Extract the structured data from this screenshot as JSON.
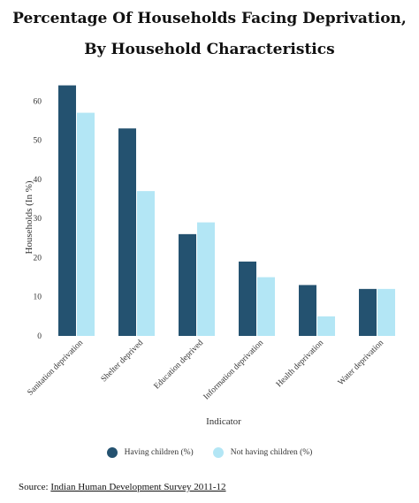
{
  "chart_data": {
    "type": "bar",
    "title": [
      "Percentage Of Households Facing Deprivation,",
      "By Household Characteristics"
    ],
    "xlabel": "Indicator",
    "ylabel": "Households (In %)",
    "ylim": [
      0,
      70
    ],
    "yticks": [
      0,
      10,
      20,
      30,
      40,
      50,
      60
    ],
    "categories": [
      "Sanitation deprivation",
      "Shelter deprived",
      "Education deprived",
      "Information deprivation",
      "Health deprivation",
      "Water deprivation"
    ],
    "series": [
      {
        "name": "Having children (%)",
        "color": "#245270",
        "values": [
          64,
          53,
          26,
          19,
          13,
          12
        ]
      },
      {
        "name": "Not having children (%)",
        "color": "#b3e6f5",
        "values": [
          57,
          37,
          29,
          15,
          5,
          12
        ]
      }
    ],
    "grid": false,
    "legend_position": "bottom"
  },
  "source": {
    "label": "Source:",
    "link_text": "Indian Human Development Survey 2011-12"
  }
}
